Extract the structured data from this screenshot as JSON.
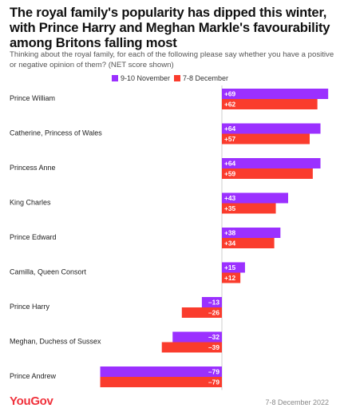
{
  "header": {
    "title": "The royal family's popularity has dipped this winter, with Prince Harry and Meghan Markle's favourability among Britons falling most",
    "subtitle": "Thinking about the royal family, for each of the following please say whether you have a positive or negative opinion of them? (NET score shown)"
  },
  "footer": {
    "brand": "YouGov",
    "date": "7-8 December 2022"
  },
  "colors": {
    "series_a": "#9b30ff",
    "series_b": "#fa3c2d",
    "brand": "#f0323c"
  },
  "chart_data": {
    "type": "bar",
    "orientation": "horizontal",
    "title": "The royal family's popularity has dipped this winter, with Prince Harry and Meghan Markle's favourability among Britons falling most",
    "xlabel": "",
    "ylabel": "",
    "xlim": [
      -79,
      69
    ],
    "grid": false,
    "legend_position": "top",
    "categories": [
      "Prince William",
      "Catherine, Princess of Wales",
      "Princess Anne",
      "King Charles",
      "Prince Edward",
      "Camilla, Queen Consort",
      "Prince Harry",
      "Meghan, Duchess of Sussex",
      "Prince Andrew"
    ],
    "series": [
      {
        "name": "9-10 November",
        "color": "#9b30ff",
        "values": [
          69,
          64,
          64,
          43,
          38,
          15,
          -13,
          -32,
          -79
        ],
        "labels": [
          "+69",
          "+64",
          "+64",
          "+43",
          "+38",
          "+15",
          "–13",
          "–32",
          "–79"
        ]
      },
      {
        "name": "7-8 December",
        "color": "#fa3c2d",
        "values": [
          62,
          57,
          59,
          35,
          34,
          12,
          -26,
          -39,
          -79
        ],
        "labels": [
          "+62",
          "+57",
          "+59",
          "+35",
          "+34",
          "+12",
          "–26",
          "–39",
          "–79"
        ]
      }
    ]
  }
}
